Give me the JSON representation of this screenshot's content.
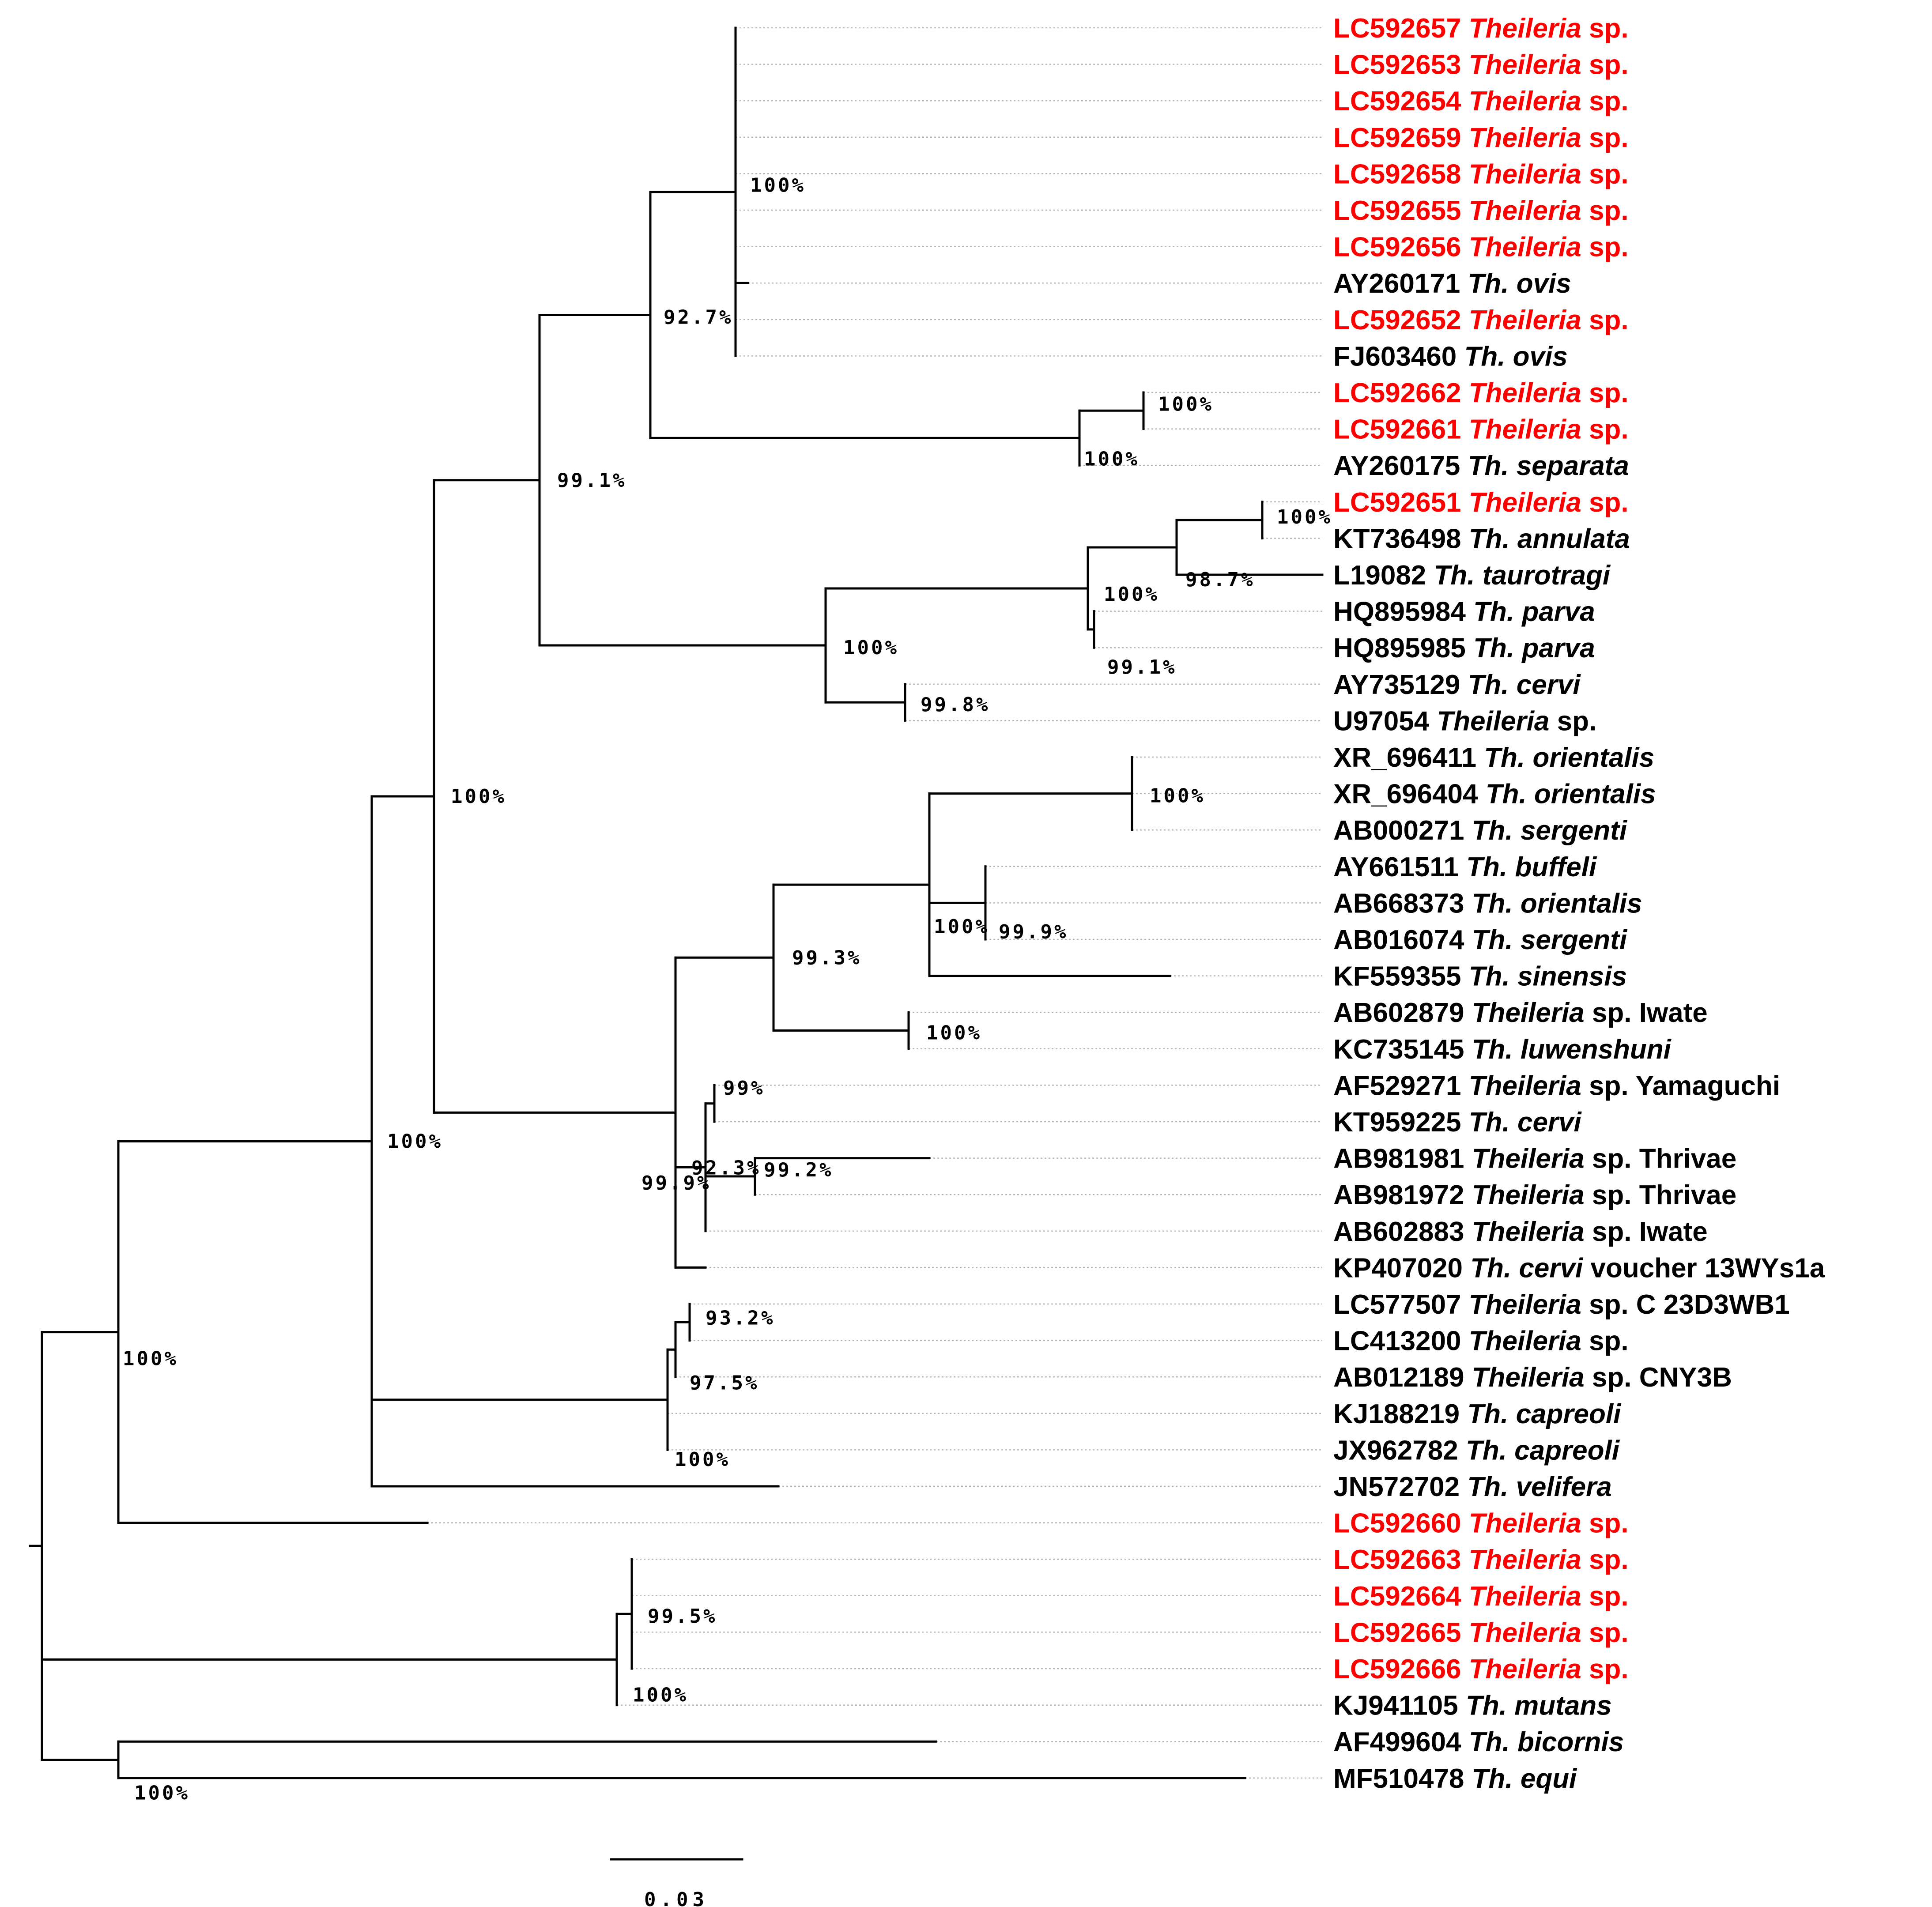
{
  "figure": {
    "type": "phylogenetic_tree",
    "highlight_color": "#ff0000",
    "default_color": "#000000",
    "scale_bar_label": "0.03"
  },
  "taxa": [
    {
      "accession": "LC592657",
      "name": "Theileria",
      "suffix": "sp.",
      "highlight": true
    },
    {
      "accession": "LC592653",
      "name": "Theileria",
      "suffix": "sp.",
      "highlight": true
    },
    {
      "accession": "LC592654",
      "name": "Theileria",
      "suffix": "sp.",
      "highlight": true
    },
    {
      "accession": "LC592659",
      "name": "Theileria",
      "suffix": "sp.",
      "highlight": true
    },
    {
      "accession": "LC592658",
      "name": "Theileria",
      "suffix": "sp.",
      "highlight": true
    },
    {
      "accession": "LC592655",
      "name": "Theileria",
      "suffix": "sp.",
      "highlight": true
    },
    {
      "accession": "LC592656",
      "name": "Theileria",
      "suffix": "sp.",
      "highlight": true
    },
    {
      "accession": "AY260171",
      "name": "Th. ovis",
      "suffix": "",
      "highlight": false
    },
    {
      "accession": "LC592652",
      "name": "Theileria",
      "suffix": "sp.",
      "highlight": true
    },
    {
      "accession": "FJ603460",
      "name": "Th. ovis",
      "suffix": "",
      "highlight": false
    },
    {
      "accession": "LC592662",
      "name": "Theileria",
      "suffix": "sp.",
      "highlight": true
    },
    {
      "accession": "LC592661",
      "name": "Theileria",
      "suffix": "sp.",
      "highlight": true
    },
    {
      "accession": "AY260175",
      "name": "Th. separata",
      "suffix": "",
      "highlight": false
    },
    {
      "accession": "LC592651",
      "name": "Theileria",
      "suffix": "sp.",
      "highlight": true
    },
    {
      "accession": "KT736498",
      "name": "Th. annulata",
      "suffix": "",
      "highlight": false
    },
    {
      "accession": "L19082",
      "name": "Th. taurotragi",
      "suffix": "",
      "highlight": false
    },
    {
      "accession": "HQ895984",
      "name": "Th. parva",
      "suffix": "",
      "highlight": false
    },
    {
      "accession": "HQ895985",
      "name": "Th. parva",
      "suffix": "",
      "highlight": false
    },
    {
      "accession": "AY735129",
      "name": "Th. cervi",
      "suffix": "",
      "highlight": false
    },
    {
      "accession": "U97054",
      "name": "Theileria",
      "suffix": "sp.",
      "highlight": false
    },
    {
      "accession": "XR_696411",
      "name": "Th. orientalis",
      "suffix": "",
      "highlight": false
    },
    {
      "accession": "XR_696404",
      "name": "Th. orientalis",
      "suffix": "",
      "highlight": false
    },
    {
      "accession": "AB000271",
      "name": "Th. sergenti",
      "suffix": "",
      "highlight": false
    },
    {
      "accession": "AY661511",
      "name": "Th. buffeli",
      "suffix": "",
      "highlight": false
    },
    {
      "accession": "AB668373",
      "name": "Th. orientalis",
      "suffix": "",
      "highlight": false
    },
    {
      "accession": "AB016074",
      "name": "Th. sergenti",
      "suffix": "",
      "highlight": false
    },
    {
      "accession": "KF559355",
      "name": "Th. sinensis",
      "suffix": "",
      "highlight": false
    },
    {
      "accession": "AB602879",
      "name": "Theileria",
      "suffix": "sp. Iwate",
      "highlight": false
    },
    {
      "accession": "KC735145",
      "name": "Th. luwenshuni",
      "suffix": "",
      "highlight": false
    },
    {
      "accession": "AF529271",
      "name": "Theileria",
      "suffix": "sp. Yamaguchi",
      "highlight": false
    },
    {
      "accession": "KT959225",
      "name": "Th. cervi",
      "suffix": "",
      "highlight": false
    },
    {
      "accession": "AB981981",
      "name": "Theileria",
      "suffix": "sp. Thrivae",
      "highlight": false
    },
    {
      "accession": "AB981972",
      "name": "Theileria",
      "suffix": "sp. Thrivae",
      "highlight": false
    },
    {
      "accession": "AB602883",
      "name": "Theileria",
      "suffix": "sp. Iwate",
      "highlight": false
    },
    {
      "accession": "KP407020",
      "name": "Th. cervi",
      "suffix": "voucher 13WYs1a",
      "highlight": false
    },
    {
      "accession": "LC577507",
      "name": "Theileria",
      "suffix": "sp. C 23D3WB1",
      "highlight": false
    },
    {
      "accession": "LC413200",
      "name": "Theileria",
      "suffix": "sp.",
      "highlight": false
    },
    {
      "accession": "AB012189",
      "name": "Theileria",
      "suffix": "sp. CNY3B",
      "highlight": false
    },
    {
      "accession": "KJ188219",
      "name": "Th. capreoli",
      "suffix": "",
      "highlight": false
    },
    {
      "accession": "JX962782",
      "name": "Th. capreoli",
      "suffix": "",
      "highlight": false
    },
    {
      "accession": "JN572702",
      "name": "Th. velifera",
      "suffix": "",
      "highlight": false
    },
    {
      "accession": "LC592660",
      "name": "Theileria",
      "suffix": "sp.",
      "highlight": true
    },
    {
      "accession": "LC592663",
      "name": "Theileria",
      "suffix": "sp.",
      "highlight": true
    },
    {
      "accession": "LC592664",
      "name": "Theileria",
      "suffix": "sp.",
      "highlight": true
    },
    {
      "accession": "LC592665",
      "name": "Theileria",
      "suffix": "sp.",
      "highlight": true
    },
    {
      "accession": "LC592666",
      "name": "Theileria",
      "suffix": "sp.",
      "highlight": true
    },
    {
      "accession": "KJ941105",
      "name": "Th. mutans",
      "suffix": "",
      "highlight": false
    },
    {
      "accession": "AF499604",
      "name": "Th. bicornis",
      "suffix": "",
      "highlight": false
    },
    {
      "accession": "MF510478",
      "name": "Th. equi",
      "suffix": "",
      "highlight": false
    }
  ],
  "support_values": [
    "100%",
    "100%",
    "100%",
    "92.7%",
    "100%",
    "98.7%",
    "100%",
    "99.1%",
    "100%",
    "99.8%",
    "99.1%",
    "100%",
    "99.9%",
    "100%",
    "99.3%",
    "100%",
    "99.9%",
    "99%",
    "99.2%",
    "92.3%",
    "100%",
    "93.2%",
    "97.5%",
    "100%",
    "100%",
    "100%",
    "99.5%",
    "100%",
    "100%"
  ]
}
